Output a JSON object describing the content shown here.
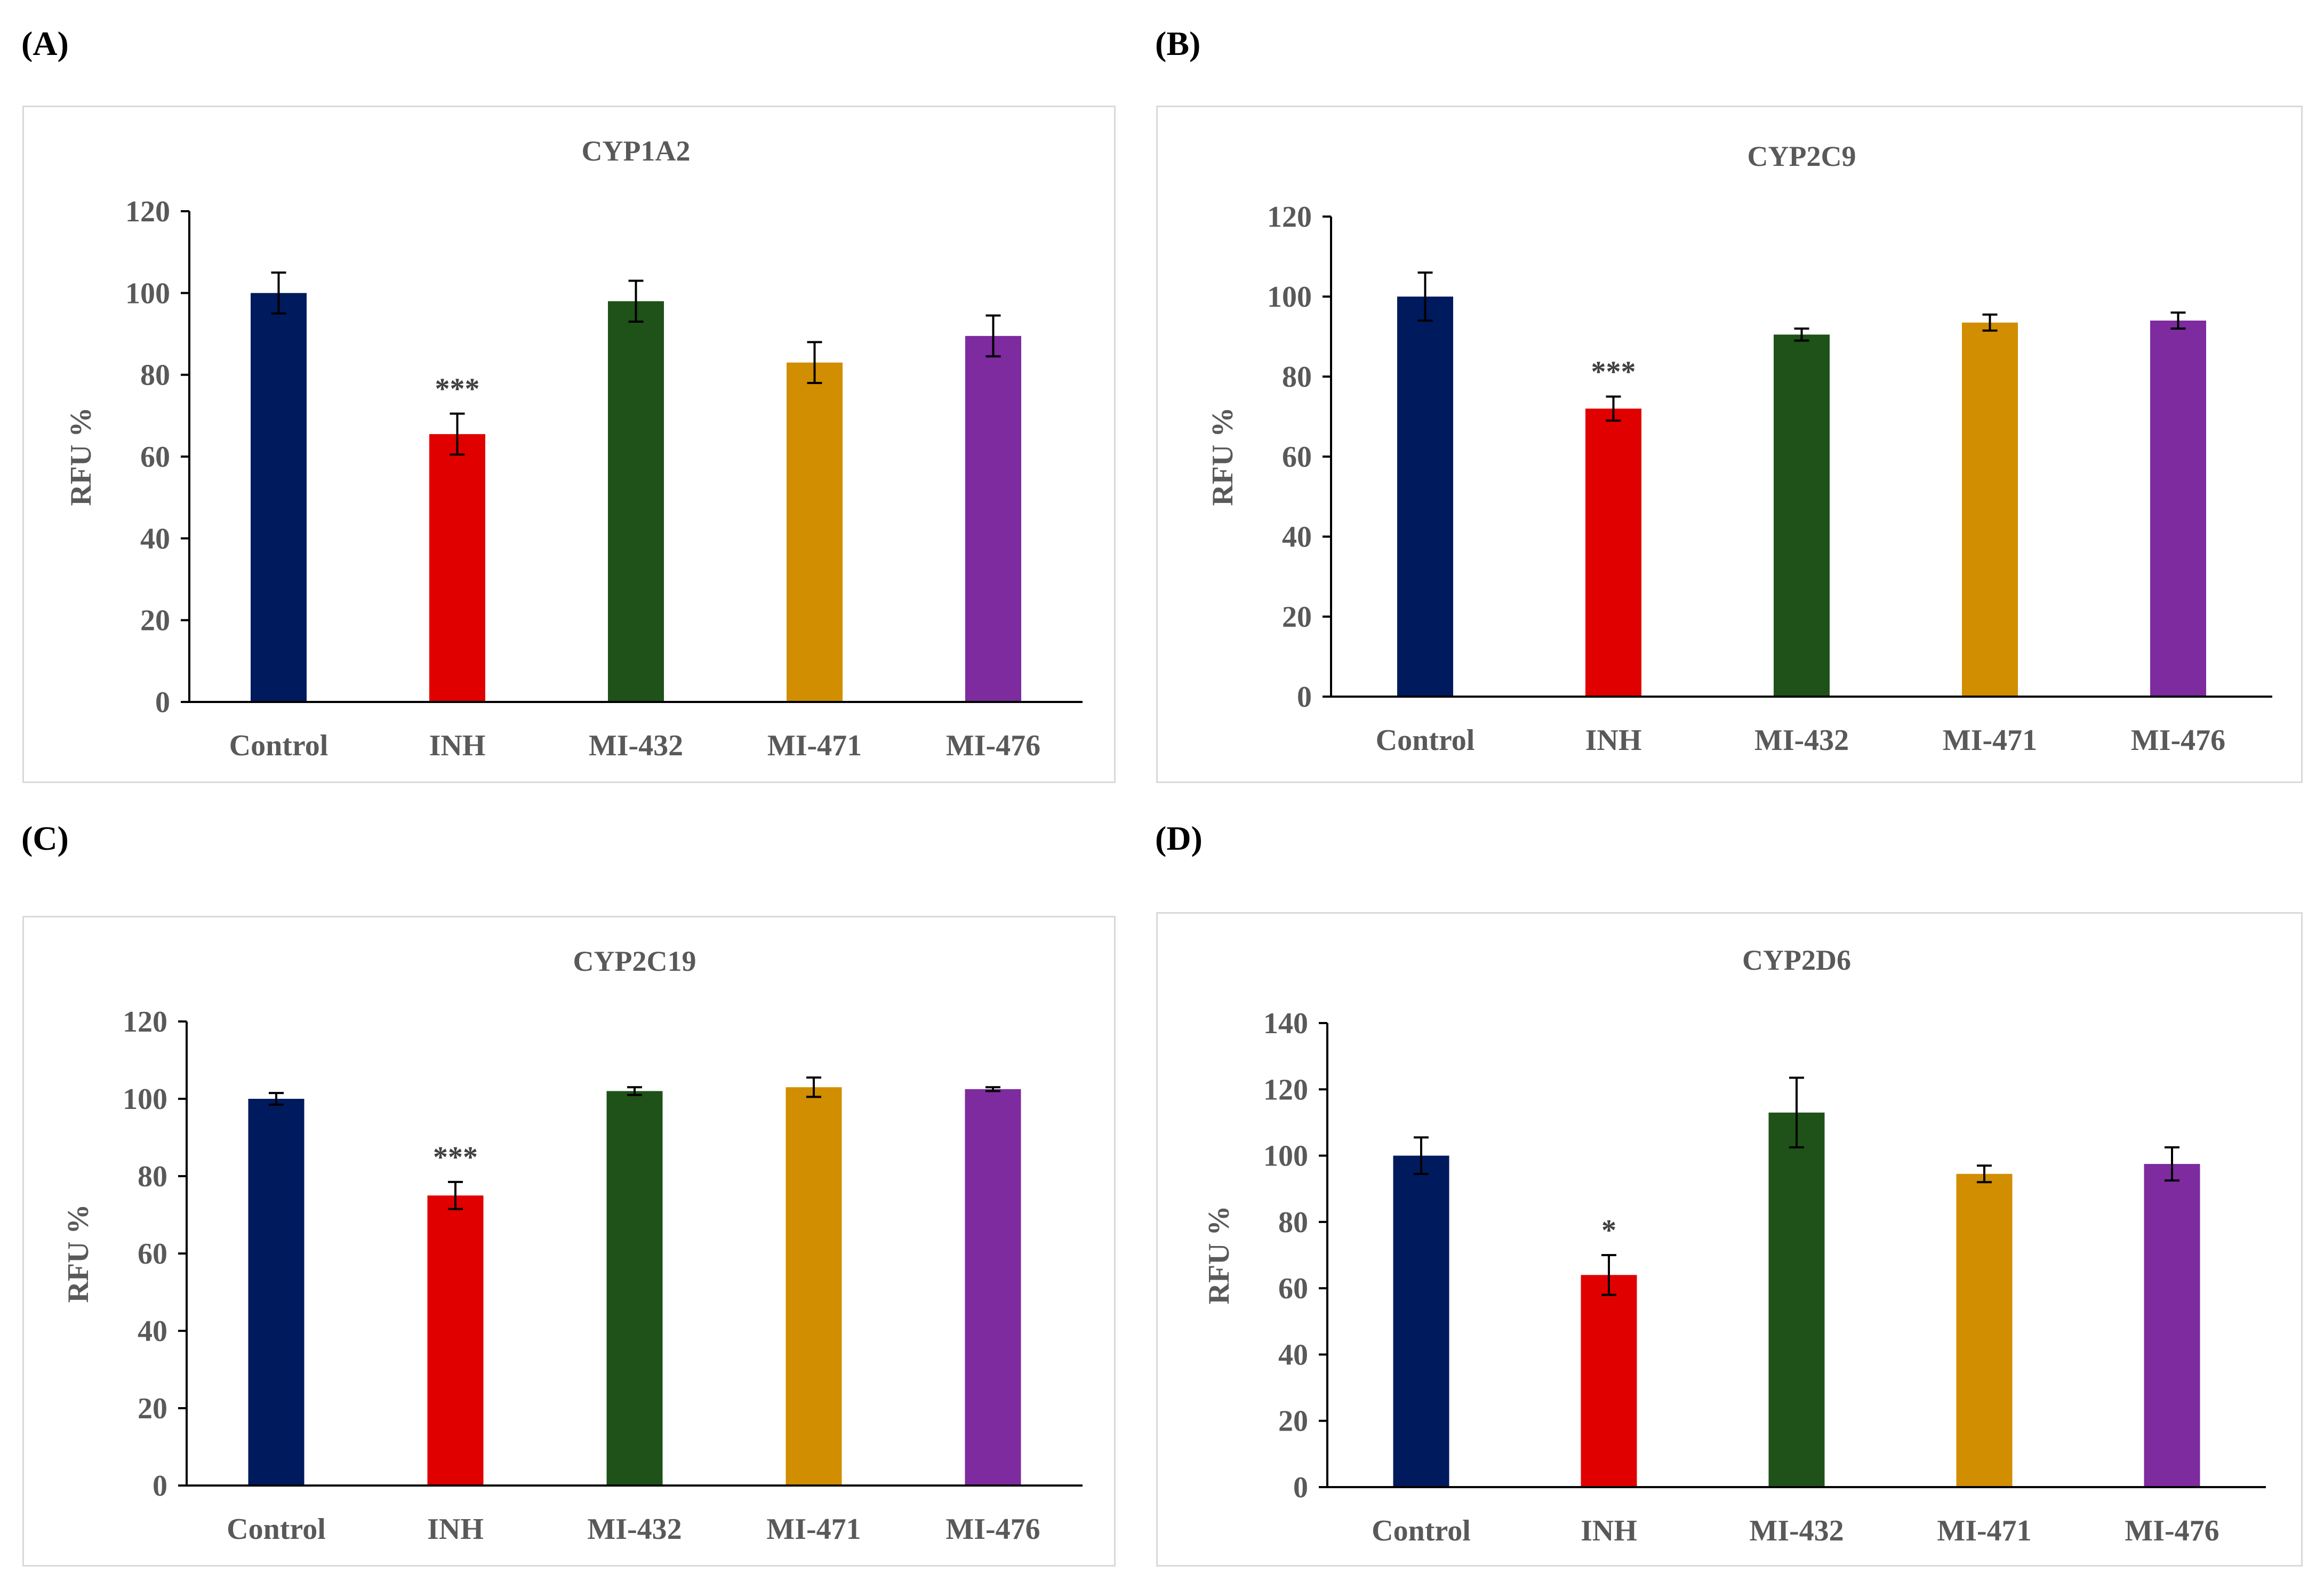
{
  "panels": [
    {
      "letter": "(A)"
    },
    {
      "letter": "(B)"
    },
    {
      "letter": "(C)"
    },
    {
      "letter": "(D)"
    }
  ],
  "colors": [
    "#001a5e",
    "#e00000",
    "#1e5218",
    "#d18e00",
    "#7d2b9e"
  ],
  "chart_data": [
    {
      "type": "bar",
      "title": "CYP1A2",
      "ylabel": "RFU %",
      "xlabel": "",
      "categories": [
        "Control",
        "INH",
        "MI-432",
        "MI-471",
        "MI-476"
      ],
      "values": [
        100,
        65.5,
        98,
        83,
        89.5
      ],
      "errors": [
        5,
        5,
        5,
        5,
        5
      ],
      "annotations": [
        "",
        "***",
        "",
        "",
        ""
      ],
      "ylim": [
        0,
        120
      ],
      "yticks": [
        0,
        20,
        40,
        60,
        80,
        100,
        120
      ]
    },
    {
      "type": "bar",
      "title": "CYP2C9",
      "ylabel": "RFU %",
      "xlabel": "",
      "categories": [
        "Control",
        "INH",
        "MI-432",
        "MI-471",
        "MI-476"
      ],
      "values": [
        100,
        72,
        90.5,
        93.5,
        94
      ],
      "errors": [
        6,
        3,
        1.5,
        2,
        2
      ],
      "annotations": [
        "",
        "***",
        "",
        "",
        ""
      ],
      "ylim": [
        0,
        120
      ],
      "yticks": [
        0,
        20,
        40,
        60,
        80,
        100,
        120
      ]
    },
    {
      "type": "bar",
      "title": "CYP2C19",
      "ylabel": "RFU %",
      "xlabel": "",
      "categories": [
        "Control",
        "INH",
        "MI-432",
        "MI-471",
        "MI-476"
      ],
      "values": [
        100,
        75,
        102,
        103,
        102.5
      ],
      "errors": [
        1.5,
        3.5,
        1,
        2.5,
        0.5
      ],
      "annotations": [
        "",
        "***",
        "",
        "",
        ""
      ],
      "ylim": [
        0,
        120
      ],
      "yticks": [
        0,
        20,
        40,
        60,
        80,
        100,
        120
      ]
    },
    {
      "type": "bar",
      "title": "CYP2D6",
      "ylabel": "RFU %",
      "xlabel": "",
      "categories": [
        "Control",
        "INH",
        "MI-432",
        "MI-471",
        "MI-476"
      ],
      "values": [
        100,
        64,
        113,
        94.5,
        97.5
      ],
      "errors": [
        5.5,
        6,
        10.5,
        2.5,
        5
      ],
      "annotations": [
        "",
        "*",
        "",
        "",
        ""
      ],
      "ylim": [
        0,
        140
      ],
      "yticks": [
        0,
        20,
        40,
        60,
        80,
        100,
        120,
        140
      ]
    }
  ]
}
